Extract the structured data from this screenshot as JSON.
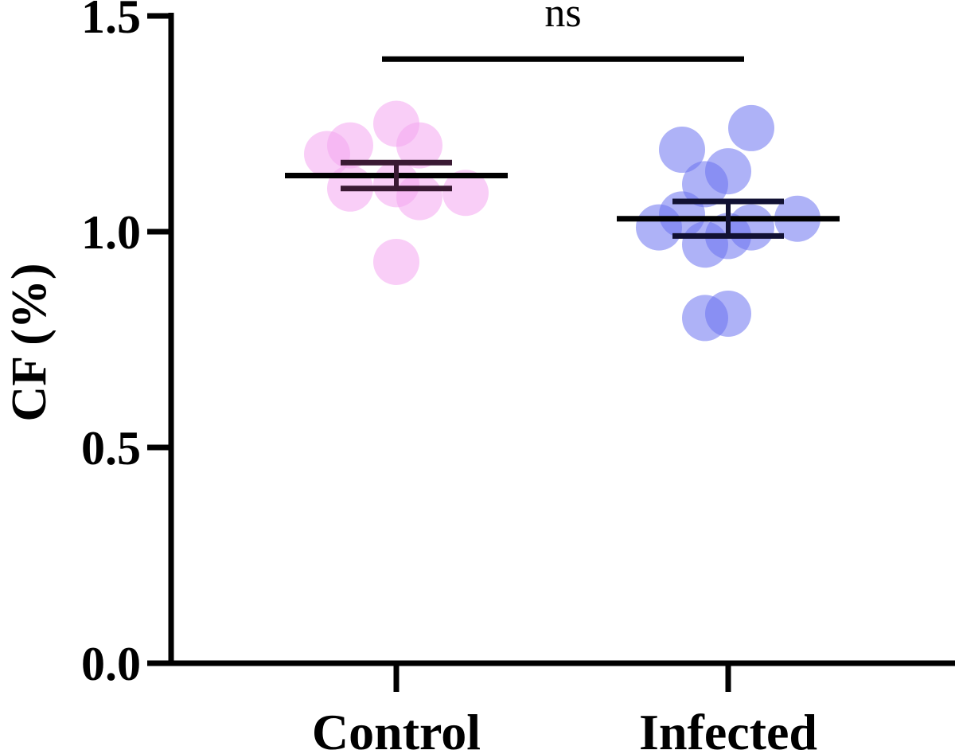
{
  "chart_data": {
    "type": "scatter",
    "ylabel": "CF (%)",
    "ylim": [
      0.0,
      1.5
    ],
    "yticks": [
      0.0,
      0.5,
      1.0,
      1.5
    ],
    "ytick_labels": [
      "0.0",
      "0.5",
      "1.0",
      "1.5"
    ],
    "categories": [
      "Control",
      "Infected"
    ],
    "grid": false,
    "series": [
      {
        "name": "Control",
        "color": "#f4a6f0",
        "mean": 1.13,
        "sem": [
          1.1,
          1.16
        ],
        "points": [
          {
            "jitter": -3,
            "value": 1.18
          },
          {
            "jitter": -2,
            "value": 1.2
          },
          {
            "jitter": -2,
            "value": 1.1
          },
          {
            "jitter": 0,
            "value": 1.25
          },
          {
            "jitter": 0,
            "value": 1.11
          },
          {
            "jitter": 0,
            "value": 0.93
          },
          {
            "jitter": 1,
            "value": 1.2
          },
          {
            "jitter": 1,
            "value": 1.08
          },
          {
            "jitter": 3,
            "value": 1.09
          }
        ]
      },
      {
        "name": "Infected",
        "color": "#6b73f0",
        "mean": 1.03,
        "sem": [
          0.99,
          1.07
        ],
        "points": [
          {
            "jitter": -3,
            "value": 1.01
          },
          {
            "jitter": -2,
            "value": 1.19
          },
          {
            "jitter": -2,
            "value": 1.04
          },
          {
            "jitter": -1,
            "value": 1.11
          },
          {
            "jitter": -1,
            "value": 0.97
          },
          {
            "jitter": -1,
            "value": 0.8
          },
          {
            "jitter": 0,
            "value": 1.14
          },
          {
            "jitter": 0,
            "value": 0.99
          },
          {
            "jitter": 0,
            "value": 0.81
          },
          {
            "jitter": 1,
            "value": 1.24
          },
          {
            "jitter": 1,
            "value": 1.01
          },
          {
            "jitter": 3,
            "value": 1.03
          }
        ]
      }
    ],
    "annotations": [
      {
        "type": "significance_bar",
        "from": "Control",
        "to": "Infected",
        "level": 1.4,
        "text": "ns"
      }
    ]
  }
}
